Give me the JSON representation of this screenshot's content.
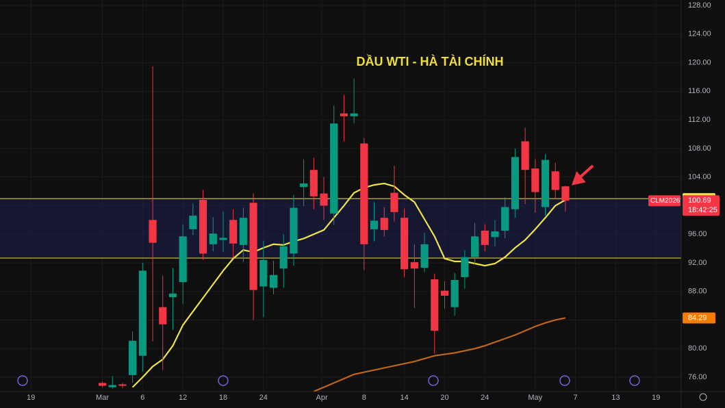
{
  "chart_data": {
    "type": "candlestick",
    "title": "DẦU WTI - HÀ TÀI CHÍNH",
    "symbol": "CLM2026",
    "countdown": "18:42:25",
    "up_color": "#089981",
    "down_color": "#f23645",
    "grid": true,
    "xlim": [
      -10.17,
      57.5
    ],
    "ylim": [
      73.99,
      128.77
    ],
    "yticks": [
      {
        "value": 76,
        "label": "76.00"
      },
      {
        "value": 80,
        "label": "80.00"
      },
      {
        "value": 84,
        "label": "84.00"
      },
      {
        "value": 88,
        "label": "88.00"
      },
      {
        "value": 92,
        "label": "92.00"
      },
      {
        "value": 96,
        "label": "96.00"
      },
      {
        "value": 100,
        "label": "100.00"
      },
      {
        "value": 104,
        "label": "104.00"
      },
      {
        "value": 108,
        "label": "108.00"
      },
      {
        "value": 112,
        "label": "112.00"
      },
      {
        "value": 116,
        "label": "116.00"
      },
      {
        "value": 120,
        "label": "120.00"
      },
      {
        "value": 124,
        "label": "124.00"
      },
      {
        "value": 128,
        "label": "128.00"
      }
    ],
    "xticks": [
      {
        "value": -7.1,
        "label": "19"
      },
      {
        "value": 0,
        "label": "Mar"
      },
      {
        "value": 4,
        "label": "6"
      },
      {
        "value": 8,
        "label": "12"
      },
      {
        "value": 12,
        "label": "18"
      },
      {
        "value": 16,
        "label": "24"
      },
      {
        "value": 21.8,
        "label": "Apr"
      },
      {
        "value": 26,
        "label": "8"
      },
      {
        "value": 30,
        "label": "14"
      },
      {
        "value": 34,
        "label": "20"
      },
      {
        "value": 38,
        "label": "24"
      },
      {
        "value": 43,
        "label": "May"
      },
      {
        "value": 47,
        "label": "7"
      },
      {
        "value": 51,
        "label": "13"
      },
      {
        "value": 55,
        "label": "19"
      }
    ],
    "open": [
      75.2,
      74.6,
      75.0,
      76.3,
      79.0,
      98.0,
      85.8,
      87.2,
      89.3,
      96.7,
      100.8,
      94.6,
      95.2,
      98.0,
      94.5,
      100.4,
      88.7,
      88.5,
      91.2,
      93.3,
      102.6,
      105.0,
      101.7,
      98.9,
      112.9,
      112.5,
      108.7,
      96.7,
      98.3,
      101.8,
      98.3,
      92.1,
      91.3,
      89.7,
      88.1,
      85.8,
      90.0,
      92.8,
      96.5,
      95.6,
      96.5,
      99.5,
      109.0,
      105.2,
      99.8,
      104.8,
      102.7
    ],
    "high": [
      75.4,
      76.2,
      75.2,
      82.4,
      92.0,
      119.5,
      90.2,
      91.3,
      97.4,
      100.3,
      102.2,
      98.4,
      99.2,
      99.5,
      99.7,
      101.7,
      95.1,
      92.3,
      96.0,
      101.5,
      106.5,
      106.7,
      104.0,
      114.0,
      115.5,
      117.8,
      109.5,
      100.5,
      99.8,
      105.6,
      99.6,
      94.6,
      96.2,
      90.5,
      89.4,
      90.6,
      93.8,
      97.6,
      97.4,
      98.0,
      101.2,
      108.0,
      110.9,
      106.5,
      107.2,
      106.0,
      102.8
    ],
    "low": [
      74.6,
      74.4,
      74.5,
      75.2,
      76.8,
      81.0,
      77.0,
      82.6,
      86.2,
      95.9,
      92.4,
      93.6,
      93.5,
      92.7,
      92.1,
      84.0,
      84.4,
      87.6,
      88.5,
      91.6,
      99.9,
      99.5,
      98.0,
      97.3,
      109.0,
      111.5,
      91.0,
      95.0,
      95.7,
      97.8,
      90.0,
      85.7,
      90.7,
      79.3,
      85.6,
      84.6,
      88.4,
      91.8,
      93.6,
      94.3,
      95.4,
      98.3,
      100.2,
      99.0,
      98.6,
      100.9,
      99.2
    ],
    "close": [
      74.8,
      74.9,
      74.8,
      81.1,
      90.9,
      94.8,
      83.4,
      87.7,
      95.7,
      98.6,
      93.3,
      96.1,
      95.5,
      94.7,
      98.3,
      88.2,
      92.4,
      90.3,
      94.3,
      99.7,
      103.1,
      101.3,
      100.0,
      111.5,
      112.5,
      112.9,
      94.6,
      97.9,
      96.6,
      99.1,
      91.1,
      91.2,
      94.6,
      82.5,
      87.4,
      89.6,
      92.8,
      95.7,
      94.5,
      96.4,
      99.8,
      106.8,
      105.0,
      101.9,
      106.4,
      102.2,
      100.69
    ],
    "series": [
      {
        "color": "#f0e34a",
        "values": [
          null,
          null,
          null,
          74.6,
          76.0,
          77.5,
          78.5,
          80.4,
          83.3,
          85.2,
          87.1,
          89.0,
          90.9,
          92.6,
          93.8,
          93.5,
          94.1,
          94.6,
          94.5,
          95.0,
          95.4,
          96.0,
          96.6,
          98.3,
          100.0,
          101.8,
          102.5,
          102.9,
          103.1,
          102.7,
          101.5,
          100.5,
          98.1,
          95.7,
          92.6,
          92.2,
          92.2,
          91.9,
          91.6,
          91.9,
          92.8,
          94.1,
          95.2,
          96.7,
          98.3,
          100.0,
          100.8
        ]
      },
      {
        "color": "#c0651a",
        "values": [
          null,
          null,
          null,
          null,
          null,
          null,
          null,
          null,
          null,
          null,
          null,
          null,
          null,
          null,
          null,
          null,
          null,
          null,
          null,
          null,
          null,
          74.0,
          74.6,
          75.2,
          75.8,
          76.4,
          76.7,
          77.0,
          77.3,
          77.6,
          77.9,
          78.2,
          78.6,
          79.0,
          79.2,
          79.4,
          79.7,
          80.0,
          80.4,
          80.9,
          81.4,
          81.9,
          82.5,
          83.1,
          83.6,
          84.0,
          84.29
        ]
      }
    ],
    "hlines": [
      {
        "value": 100.98,
        "color": "#f0e34a"
      },
      {
        "value": 92.66,
        "color": "#f0e34a"
      }
    ]
  }
}
